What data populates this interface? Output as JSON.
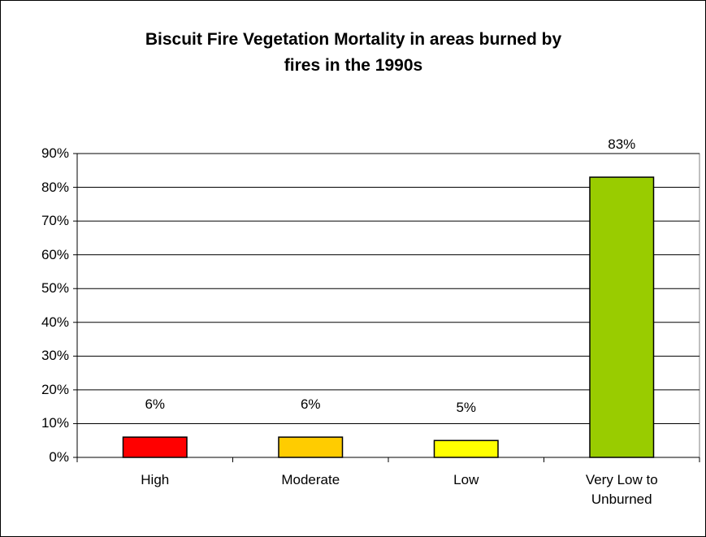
{
  "chart_data": {
    "type": "bar",
    "title": "Biscuit Fire Vegetation Mortality in areas burned by fires in the 1990s",
    "categories": [
      "High",
      "Moderate",
      "Low",
      "Very Low to Unburned"
    ],
    "values": [
      6,
      6,
      5,
      83
    ],
    "value_labels": [
      "6%",
      "6%",
      "5%",
      "83%"
    ],
    "colors": [
      "#ff0000",
      "#ffcc00",
      "#ffff00",
      "#99cc00"
    ],
    "ylim": [
      0,
      90
    ],
    "yticks": [
      {
        "value": 0,
        "label": "0%"
      },
      {
        "value": 10,
        "label": "10%"
      },
      {
        "value": 20,
        "label": "20%"
      },
      {
        "value": 30,
        "label": "30%"
      },
      {
        "value": 40,
        "label": "40%"
      },
      {
        "value": 50,
        "label": "50%"
      },
      {
        "value": 60,
        "label": "60%"
      },
      {
        "value": 70,
        "label": "70%"
      },
      {
        "value": 80,
        "label": "80%"
      },
      {
        "value": 90,
        "label": "90%"
      }
    ],
    "grid": true
  }
}
